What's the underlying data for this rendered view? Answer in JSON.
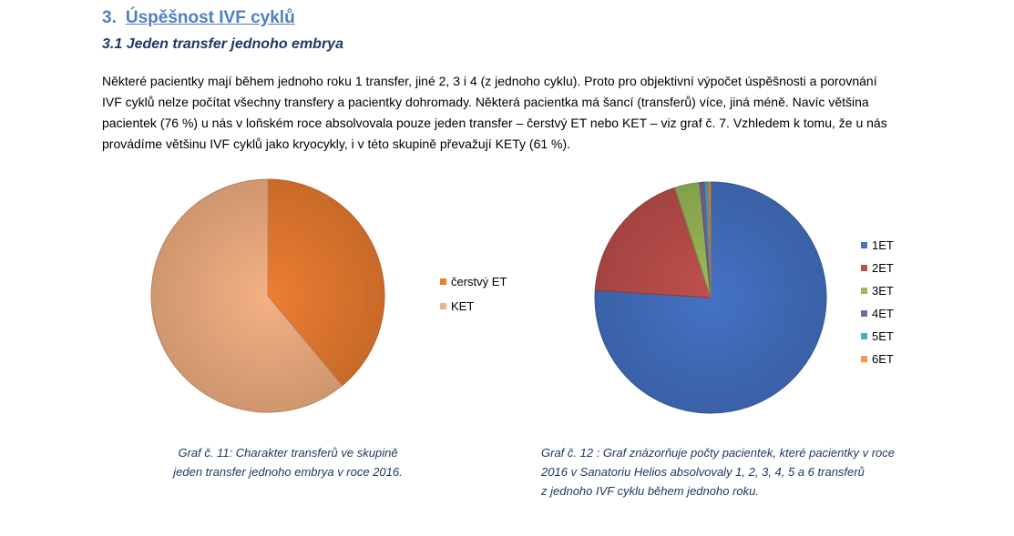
{
  "section": {
    "number": "3.",
    "title": "Úspěšnost IVF cyklů"
  },
  "subsection": {
    "title": "3.1 Jeden transfer jednoho embrya"
  },
  "paragraph": {
    "lines": [
      "Některé pacientky mají během jednoho roku 1 transfer, jiné 2, 3 i 4 (z jednoho cyklu). Proto pro objektivní výpočet úspěšnosti a porovnání",
      "IVF cyklů nelze počítat všechny transfery a pacientky dohromady. Některá pacientka má šancí (transferů) více, jiná méně. Navíc většina",
      "pacientek (76 %) u nás v loňském roce absolvovala pouze jeden transfer – čerstvý ET nebo KET – viz graf č. 7.  Vzhledem k tomu, že u nás",
      "provádíme většinu IVF cyklů jako kryocykly, i v této skupině převažují KETy (61 %)."
    ]
  },
  "chart_data": [
    {
      "type": "pie",
      "categories": [
        "čerstvý ET",
        "KET"
      ],
      "values": [
        39,
        61
      ],
      "colors": [
        "#ed7d31",
        "#f4b183"
      ],
      "start_angle_deg": 0,
      "legend_position": "right",
      "caption_lines": [
        "Graf č. 11: Charakter transferů ve skupině",
        "jeden transfer jednoho embrya v roce 2016."
      ]
    },
    {
      "type": "pie",
      "categories": [
        "1ET",
        "2ET",
        "3ET",
        "4ET",
        "5ET",
        "6ET"
      ],
      "values": [
        76,
        19,
        3.5,
        0.7,
        0.5,
        0.3
      ],
      "colors": [
        "#4472c4",
        "#c0504d",
        "#9bbb59",
        "#8064a2",
        "#4bacc6",
        "#f79646"
      ],
      "start_angle_deg": 0,
      "legend_position": "right",
      "caption_lines": [
        "Graf č. 12 : Graf znázorňuje počty pacientek, které pacientky v roce",
        "2016 v Sanatoriu Helios absolvovaly 1, 2, 3, 4, 5 a 6 transferů",
        "z jednoho IVF cyklu během jednoho roku."
      ]
    }
  ]
}
